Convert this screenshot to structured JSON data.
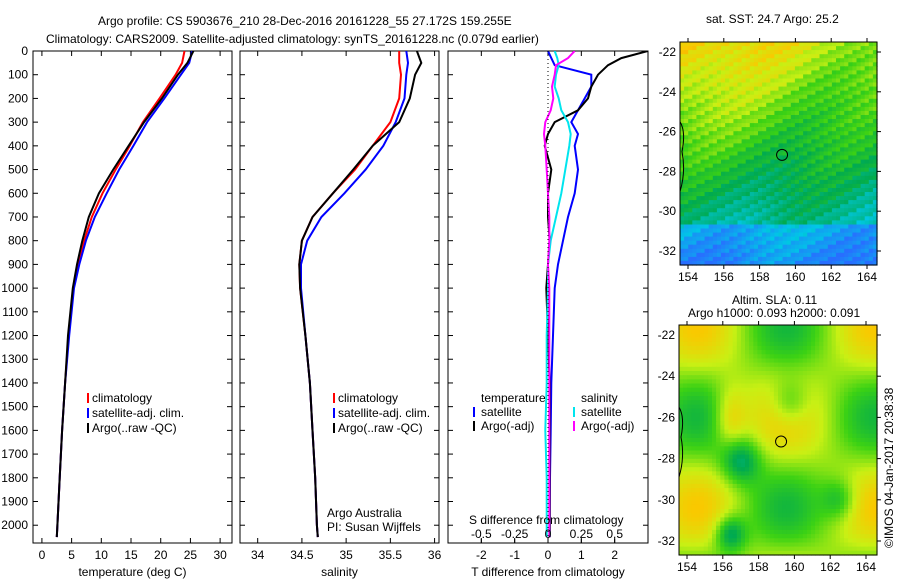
{
  "title_line1": "Argo profile: CS 5903676_210 28-Dec-2016 20161228_55 27.172S 159.255E",
  "title_line2": "Climatology: CARS2009. Satellite-adjusted climatology: synTS_20161228.nc (0.079d earlier)",
  "timestamp": "©IMOS 04-Jan-2017 20:38:38",
  "colors": {
    "climatology": "#ff0000",
    "satellite": "#0000ff",
    "argo": "#000000",
    "sal_sat": "#00e5ee",
    "sal_argo": "#ff00ff"
  },
  "chart_data": [
    {
      "type": "line",
      "xlabel": "temperature (deg C)",
      "ylabel": "depth",
      "xlim": [
        -1.5,
        32
      ],
      "ylim": [
        2075,
        0
      ],
      "xticks": [
        "0",
        "5",
        "10",
        "15",
        "20",
        "25",
        "30"
      ],
      "xtick_values": [
        0,
        5,
        10,
        15,
        20,
        25,
        30
      ],
      "yticks": [
        "0",
        "100",
        "200",
        "300",
        "400",
        "500",
        "600",
        "700",
        "800",
        "900",
        "1000",
        "1100",
        "1200",
        "1300",
        "1400",
        "1500",
        "1600",
        "1700",
        "1800",
        "1900",
        "2000"
      ],
      "legend": [
        "climatology",
        "satellite-adj. clim.",
        "Argo(..raw -QC)"
      ],
      "depth": [
        0,
        50,
        100,
        200,
        300,
        400,
        500,
        600,
        700,
        800,
        900,
        1000,
        1200,
        1400,
        1600,
        1800,
        2000,
        2050
      ],
      "series": [
        {
          "name": "climatology",
          "values": [
            24,
            23.6,
            22.5,
            19.8,
            17,
            14.8,
            12.4,
            10.2,
            8.4,
            7.1,
            6.1,
            5.3,
            4.5,
            3.9,
            3.4,
            3,
            2.6,
            2.5
          ]
        },
        {
          "name": "satellite-adj. clim.",
          "values": [
            25.3,
            24.8,
            23.4,
            20.6,
            17.7,
            15.4,
            13,
            10.9,
            8.9,
            7.4,
            6.3,
            5.4,
            4.6,
            3.9,
            3.4,
            3,
            2.6,
            2.5
          ]
        },
        {
          "name": "Argo(..raw -QC)",
          "values": [
            25.5,
            24.5,
            22.9,
            20.2,
            17.2,
            14.6,
            12,
            9.6,
            7.9,
            6.8,
            5.9,
            5.2,
            4.4,
            3.9,
            3.4,
            3,
            2.6,
            2.5
          ]
        }
      ]
    },
    {
      "type": "line",
      "xlabel": "salinity",
      "xlim": [
        33.8,
        36.05
      ],
      "ylim": [
        2075,
        0
      ],
      "xticks": [
        "34",
        "34.5",
        "35",
        "35.5",
        "36"
      ],
      "xtick_values": [
        34,
        34.5,
        35,
        35.5,
        36
      ],
      "legend": [
        "climatology",
        "satellite-adj. clim.",
        "Argo(..raw -QC)"
      ],
      "annotation": [
        "Argo Australia",
        "PI: Susan Wijffels"
      ],
      "depth": [
        0,
        50,
        100,
        200,
        300,
        400,
        500,
        600,
        700,
        800,
        900,
        1000,
        1200,
        1400,
        1600,
        1800,
        2000,
        2050
      ],
      "series": [
        {
          "name": "climatology",
          "values": [
            35.6,
            35.6,
            35.62,
            35.6,
            35.5,
            35.3,
            35.1,
            34.85,
            34.62,
            34.5,
            34.47,
            34.48,
            34.54,
            34.59,
            34.62,
            34.65,
            34.67,
            34.68
          ]
        },
        {
          "name": "satellite-adj. clim.",
          "values": [
            35.68,
            35.7,
            35.68,
            35.66,
            35.56,
            35.42,
            35.22,
            34.98,
            34.72,
            34.56,
            34.49,
            34.49,
            34.54,
            34.59,
            34.62,
            34.65,
            34.67,
            34.68
          ]
        },
        {
          "name": "Argo(..raw -QC)",
          "values": [
            35.8,
            35.85,
            35.78,
            35.72,
            35.6,
            35.3,
            35.08,
            34.85,
            34.62,
            34.5,
            34.47,
            34.48,
            34.54,
            34.59,
            34.62,
            34.65,
            34.67,
            34.68
          ]
        }
      ]
    },
    {
      "type": "line",
      "xlabel": "T difference from climatology",
      "x2label": "S difference from climatology",
      "xlim": [
        -3,
        3
      ],
      "ylim": [
        2075,
        0
      ],
      "xticks": [
        "-2",
        "-1",
        "0",
        "1",
        "2"
      ],
      "xtick_values": [
        -2,
        -1,
        0,
        1,
        2
      ],
      "x2ticks": [
        "-0.5",
        "-0.25",
        "0",
        "0.25",
        "0.5"
      ],
      "x2tick_values": [
        -0.5,
        -0.25,
        0,
        0.25,
        0.5
      ],
      "legend_temperature": {
        "heading": "temperature",
        "items": [
          "satellite",
          "Argo(-adj)"
        ]
      },
      "legend_salinity": {
        "heading": "salinity",
        "items": [
          "satellite",
          "Argo(-adj)"
        ]
      },
      "depth": [
        0,
        30,
        60,
        100,
        150,
        200,
        250,
        300,
        350,
        400,
        500,
        600,
        700,
        800,
        900,
        1000,
        1200,
        1400,
        1600,
        1800,
        2000,
        2050
      ],
      "series": [
        {
          "name": "temperature satellite",
          "scale": "T",
          "values": [
            0,
            0.1,
            0.2,
            1.3,
            1.3,
            1.1,
            0.9,
            0.7,
            0.9,
            0.8,
            0.9,
            0.8,
            0.6,
            0.45,
            0.3,
            0.2,
            0.15,
            0.1,
            0.08,
            0.06,
            0.05,
            0.05
          ]
        },
        {
          "name": "temperature Argo(-adj)",
          "scale": "T",
          "values": [
            3,
            2.2,
            1.8,
            1.5,
            1.3,
            1.2,
            0.9,
            0.2,
            0,
            -0.1,
            0.1,
            0,
            0,
            0.05,
            0,
            -0.05,
            0,
            0.05,
            0.05,
            0.05,
            0.05,
            0.05
          ]
        },
        {
          "name": "salinity satellite",
          "scale": "S",
          "values": [
            0.05,
            0.07,
            0.08,
            0.06,
            0.05,
            0.08,
            0.1,
            0.15,
            0.17,
            0.16,
            0.13,
            0.1,
            0.06,
            0.02,
            0,
            0,
            -0.01,
            -0.01,
            -0.02,
            -0.01,
            -0.01,
            -0.01
          ]
        },
        {
          "name": "salinity Argo(-adj)",
          "scale": "S",
          "values": [
            0.2,
            0.15,
            0.06,
            0.05,
            0.03,
            0.04,
            0.02,
            -0.02,
            -0.03,
            -0.02,
            -0.01,
            0,
            0.01,
            0.01,
            0,
            0.01,
            0.01,
            0.01,
            0.01,
            0.01,
            0.01,
            0.01
          ]
        }
      ]
    }
  ],
  "map_sst": {
    "title": "sat. SST: 24.7  Argo: 25.2",
    "lon_ticks": [
      "154",
      "156",
      "158",
      "160",
      "162",
      "164"
    ],
    "lat_ticks": [
      "-22",
      "-24",
      "-26",
      "-28",
      "-30",
      "-32"
    ]
  },
  "map_sla": {
    "title1": "Altim. SLA: 0.11",
    "title2": "Argo h1000: 0.093 h2000: 0.091",
    "lon_ticks": [
      "154",
      "156",
      "158",
      "160",
      "162",
      "164"
    ],
    "lat_ticks": [
      "-22",
      "-24",
      "-26",
      "-28",
      "-30",
      "-32"
    ]
  }
}
